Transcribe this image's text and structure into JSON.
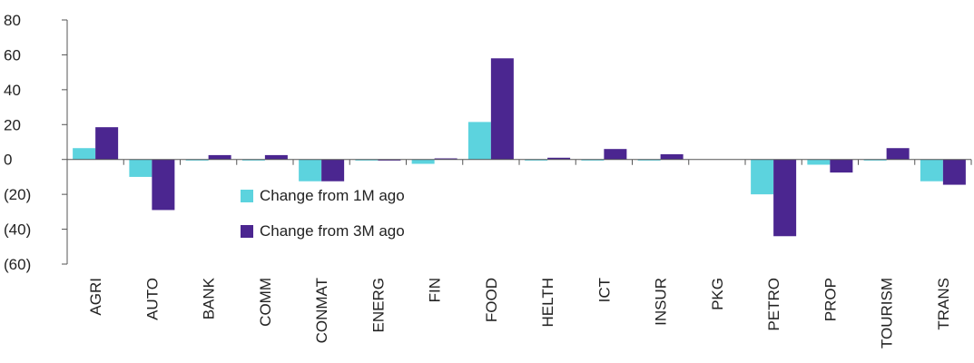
{
  "chart_data": {
    "type": "bar",
    "categories": [
      "AGRI",
      "AUTO",
      "BANK",
      "COMM",
      "CONMAT",
      "ENERG",
      "FIN",
      "FOOD",
      "HELTH",
      "ICT",
      "INSUR",
      "PKG",
      "PETRO",
      "PROP",
      "TOURISM",
      "TRANS"
    ],
    "series": [
      {
        "name": "Change from 1M ago",
        "color": "#5CD3DE",
        "values": [
          6.5,
          -10,
          -0.5,
          -0.3,
          -12.5,
          -0.2,
          -2.5,
          21.5,
          -0.5,
          -0.3,
          -0.3,
          0,
          -20,
          -3,
          -0.3,
          -12.5
        ]
      },
      {
        "name": "Change from 3M ago",
        "color": "#4B2690",
        "values": [
          18.5,
          -29,
          2.5,
          2.5,
          -12.5,
          -0.4,
          0.3,
          58,
          1,
          6,
          3,
          0,
          -44,
          -7.5,
          6.5,
          -14.5
        ]
      }
    ],
    "yticks": [
      80,
      60,
      40,
      20,
      0,
      -20,
      -40,
      -60
    ],
    "ytick_labels": [
      "80",
      "60",
      "40",
      "20",
      "0",
      "(20)",
      "(40)",
      "(60)"
    ],
    "ylim": [
      -60,
      80
    ],
    "grid": false,
    "legend_placement": "inside-bottom-left"
  }
}
